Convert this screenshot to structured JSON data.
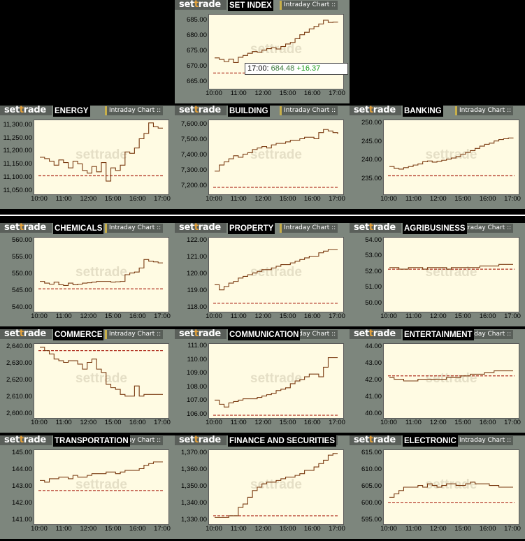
{
  "header": {
    "logo": "settrade",
    "intraday_label": "Intraday Chart ::"
  },
  "times": [
    "10:00",
    "11:00",
    "12:00",
    "15:00",
    "16:00",
    "17:00"
  ],
  "colors": {
    "line": "#7a3a10",
    "prev_close": "#b03020",
    "plot_bg": "#fffbe3",
    "panel_bg": "#7d867d"
  },
  "tooltip": {
    "time": "17:00:",
    "value": "684.48",
    "change": "+16.37"
  },
  "charts": [
    {
      "id": "set-index",
      "title": "SET INDEX",
      "yticks": [
        "685.00",
        "680.00",
        "675.00",
        "670.00",
        "665.00"
      ],
      "ymin": 663,
      "ymax": 687,
      "prev": 668.1,
      "series": [
        673,
        672.5,
        671.8,
        672.6,
        671.5,
        673.2,
        673.8,
        674.5,
        675.1,
        674.8,
        675.5,
        676,
        676.3,
        675.9,
        676.7,
        677.5,
        678,
        679.2,
        680.5,
        681.3,
        682.4,
        683.2,
        684,
        685.2,
        684.5,
        684.6,
        684.48
      ]
    },
    {
      "id": "energy",
      "title": "ENERGY",
      "yticks": [
        "11,300.00",
        "11,250.00",
        "11,200.00",
        "11,150.00",
        "11,100.00",
        "11,050.00"
      ],
      "ymin": 11040,
      "ymax": 11320,
      "prev": 11110,
      "series": [
        11180,
        11175,
        11165,
        11150,
        11170,
        11160,
        11140,
        11165,
        11155,
        11130,
        11120,
        11145,
        11125,
        11160,
        11090,
        11140,
        11130,
        11150,
        11200,
        11195,
        11215,
        11250,
        11270,
        11310,
        11295,
        11290,
        11290
      ]
    },
    {
      "id": "building",
      "title": "BUILDING",
      "yticks": [
        "7,600.00",
        "7,500.00",
        "7,400.00",
        "7,300.00",
        "7,200.00"
      ],
      "ymin": 7150,
      "ymax": 7630,
      "prev": 7195,
      "series": [
        7300,
        7340,
        7360,
        7380,
        7400,
        7390,
        7410,
        7420,
        7440,
        7450,
        7460,
        7450,
        7470,
        7480,
        7480,
        7490,
        7500,
        7500,
        7510,
        7520,
        7520,
        7510,
        7550,
        7570,
        7560,
        7550,
        7540
      ]
    },
    {
      "id": "banking",
      "title": "BANKING",
      "yticks": [
        "250.00",
        "245.00",
        "240.00",
        "235.00"
      ],
      "ymin": 231,
      "ymax": 251,
      "prev": 236,
      "series": [
        238.5,
        238,
        237.8,
        238.2,
        238.5,
        238.9,
        239.2,
        239.8,
        240,
        239.7,
        239.9,
        240.2,
        240.5,
        240.8,
        241.2,
        241.8,
        242.3,
        242.8,
        243.4,
        244,
        244.5,
        244.8,
        245.4,
        245.8,
        246,
        246.2,
        246.3
      ]
    },
    {
      "id": "chemicals",
      "title": "CHEMICALS",
      "yticks": [
        "560.00",
        "555.00",
        "550.00",
        "545.00",
        "540.00"
      ],
      "ymin": 539,
      "ymax": 561,
      "prev": 545.8,
      "series": [
        548,
        547.5,
        547.2,
        547.8,
        547,
        546.8,
        547.5,
        547,
        547.2,
        547.5,
        547.6,
        547.8,
        548,
        548,
        548,
        547.8,
        547.9,
        548,
        550,
        550.5,
        550.8,
        552,
        554.5,
        554,
        553.8,
        553.5,
        553.5
      ]
    },
    {
      "id": "property",
      "title": "PROPERTY",
      "yticks": [
        "122.00",
        "121.00",
        "120.00",
        "119.00",
        "118.00"
      ],
      "ymin": 117.8,
      "ymax": 122.2,
      "prev": 118.3,
      "series": [
        119.4,
        119.1,
        119.3,
        119.5,
        119.6,
        119.8,
        119.9,
        120,
        120.1,
        120.2,
        120.3,
        120.3,
        120.4,
        120.5,
        120.6,
        120.6,
        120.7,
        120.8,
        120.9,
        121,
        121.1,
        121.1,
        121.3,
        121.4,
        121.5,
        121.5,
        121.5
      ]
    },
    {
      "id": "agribusiness",
      "title": "AGRIBUSINESS",
      "yticks": [
        "54.00",
        "53.00",
        "52.00",
        "51.00",
        "50.00"
      ],
      "ymin": 49.5,
      "ymax": 54.2,
      "prev": 52.2,
      "series": [
        52.3,
        52.3,
        52.2,
        52.2,
        52.3,
        52.3,
        52.3,
        52.2,
        52.3,
        52.3,
        52.3,
        52.3,
        52.2,
        52.3,
        52.3,
        52.3,
        52.3,
        52.3,
        52.3,
        52.4,
        52.4,
        52.4,
        52.4,
        52.5,
        52.5,
        52.5,
        52.5
      ]
    },
    {
      "id": "commerce",
      "title": "COMMERCE",
      "yticks": [
        "2,640.00",
        "2,630.00",
        "2,620.00",
        "2,610.00",
        "2,600.00"
      ],
      "ymin": 2598,
      "ymax": 2642,
      "prev": 2638,
      "series": [
        2640,
        2638,
        2636,
        2633,
        2632,
        2631,
        2632,
        2632,
        2630,
        2627,
        2631,
        2633,
        2627,
        2625,
        2618,
        2616,
        2615,
        2612,
        2611,
        2611,
        2617,
        2611,
        2612,
        2612,
        2612,
        2612,
        2612
      ]
    },
    {
      "id": "communication",
      "title": "COMMUNICATION",
      "yticks": [
        "111.00",
        "110.00",
        "109.00",
        "108.00",
        "107.00",
        "106.00"
      ],
      "ymin": 105.8,
      "ymax": 111.2,
      "prev": 106.0,
      "series": [
        107.1,
        106.8,
        106.6,
        106.9,
        107,
        107.1,
        107.2,
        107.2,
        107.2,
        107.3,
        107.4,
        107.5,
        107.6,
        107.8,
        107.9,
        108,
        108.3,
        108.5,
        108.6,
        108.8,
        109,
        109,
        108.8,
        109.5,
        110.2,
        110.2,
        110.2
      ]
    },
    {
      "id": "entertainment",
      "title": "ENTERTAINMENT",
      "yticks": [
        "44.00",
        "43.00",
        "42.00",
        "41.00",
        "40.00"
      ],
      "ymin": 39.8,
      "ymax": 44.2,
      "prev": 42.3,
      "series": [
        42.2,
        42.1,
        42.1,
        42.0,
        42.0,
        42.0,
        42.1,
        42.1,
        42.1,
        42.1,
        42.1,
        42.1,
        42.2,
        42.2,
        42.2,
        42.3,
        42.3,
        42.4,
        42.4,
        42.4,
        42.5,
        42.5,
        42.6,
        42.6,
        42.6,
        42.6,
        42.6
      ]
    },
    {
      "id": "transportation",
      "title": "TRANSPORTATION",
      "yticks": [
        "145.00",
        "144.00",
        "143.00",
        "142.00",
        "141.00"
      ],
      "ymin": 140.8,
      "ymax": 145.2,
      "prev": 142.8,
      "series": [
        143.4,
        143.3,
        143.5,
        143.5,
        143.6,
        143.6,
        143.5,
        143.7,
        143.6,
        143.6,
        143.7,
        143.8,
        143.8,
        143.8,
        143.9,
        143.9,
        143.8,
        143.9,
        144,
        144,
        144,
        144.1,
        144.3,
        144.4,
        144.5,
        144.5,
        144.5
      ]
    },
    {
      "id": "finance",
      "title": "FINANCE AND SECURITIES",
      "yticks": [
        "1,370.00",
        "1,360.00",
        "1,350.00",
        "1,340.00",
        "1,330.00"
      ],
      "ymin": 1328,
      "ymax": 1372,
      "prev": 1333,
      "series": [
        1332,
        1332,
        1332,
        1333,
        1333,
        1338,
        1340,
        1344,
        1348,
        1350,
        1352,
        1353,
        1353,
        1354,
        1355,
        1356,
        1356,
        1357,
        1358,
        1360,
        1360,
        1362,
        1364,
        1366,
        1369,
        1370,
        1370
      ]
    },
    {
      "id": "electronic",
      "title": "ELECTRONIC",
      "yticks": [
        "615.00",
        "610.00",
        "605.00",
        "600.00",
        "595.00"
      ],
      "ymin": 594,
      "ymax": 616,
      "prev": 600.5,
      "series": [
        602,
        603,
        604,
        605,
        605,
        605,
        605.5,
        605,
        606,
        605.5,
        605,
        605.5,
        606,
        606,
        605.5,
        605.5,
        606,
        606.5,
        606,
        606,
        606,
        605.5,
        605.5,
        605,
        605,
        605,
        605
      ]
    }
  ]
}
